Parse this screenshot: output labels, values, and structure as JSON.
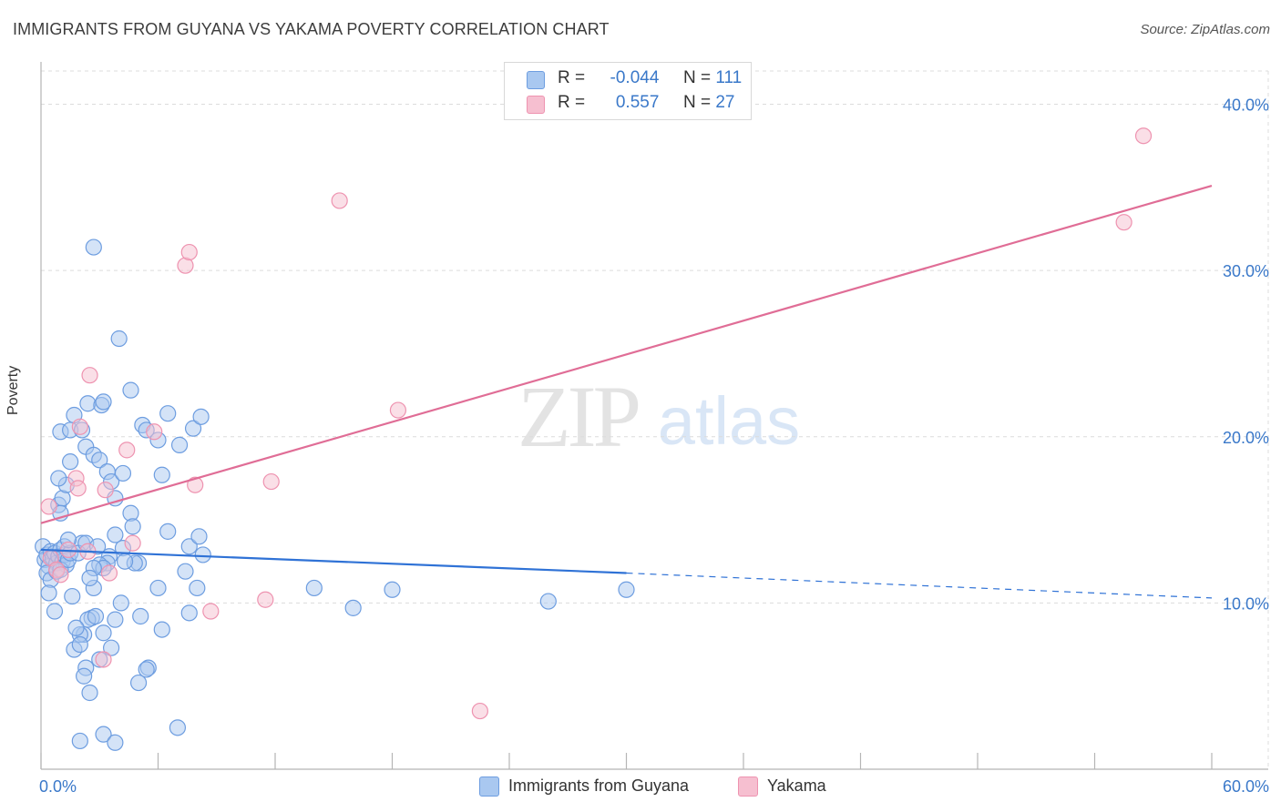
{
  "title": "IMMIGRANTS FROM GUYANA VS YAKAMA POVERTY CORRELATION CHART",
  "source": "Source: ZipAtlas.com",
  "watermark": {
    "zip": "ZIP",
    "atlas": "atlas"
  },
  "legend": {
    "r_label": "R =",
    "n_label": "N =",
    "series": [
      {
        "name": "Immigrants from Guyana",
        "r": "-0.044",
        "n": "111"
      },
      {
        "name": "Yakama",
        "r": "0.557",
        "n": "27"
      }
    ]
  },
  "colors": {
    "blue_fill": "#a9c8f0",
    "blue_stroke": "#6d9de0",
    "blue_line": "#2f72d6",
    "pink_fill": "#f6bfd0",
    "pink_stroke": "#ee93b0",
    "pink_line": "#e06d96",
    "axis_text": "#3a78c9",
    "grid": "#dcdcdc"
  },
  "chart_data": {
    "type": "scatter",
    "title": "IMMIGRANTS FROM GUYANA VS YAKAMA POVERTY CORRELATION CHART",
    "xlabel": "",
    "ylabel": "Poverty",
    "xlim": [
      0,
      60
    ],
    "ylim": [
      0,
      42
    ],
    "x_tick_labels": [
      "0.0%",
      "60.0%"
    ],
    "y_ticks": [
      10,
      20,
      30,
      40
    ],
    "y_tick_labels": [
      "10.0%",
      "20.0%",
      "30.0%",
      "40.0%"
    ],
    "grid": true,
    "legend_position": "top-center",
    "series": [
      {
        "name": "Immigrants from Guyana",
        "r": -0.044,
        "n": 111,
        "trend": {
          "x0": 0,
          "y0": 13.2,
          "x1": 30,
          "y1": 11.8,
          "dash_x1": 60,
          "dash_y1": 10.3
        },
        "points": [
          [
            0.1,
            13.4
          ],
          [
            0.2,
            12.6
          ],
          [
            0.3,
            12.9
          ],
          [
            0.4,
            12.2
          ],
          [
            0.5,
            13.1
          ],
          [
            0.6,
            12.7
          ],
          [
            0.7,
            13.0
          ],
          [
            0.8,
            12.4
          ],
          [
            0.9,
            12.8
          ],
          [
            1.0,
            13.2
          ],
          [
            1.1,
            12.5
          ],
          [
            1.2,
            12.9
          ],
          [
            1.3,
            12.3
          ],
          [
            0.3,
            11.8
          ],
          [
            0.5,
            11.4
          ],
          [
            0.8,
            11.9
          ],
          [
            1.0,
            12.0
          ],
          [
            1.2,
            13.4
          ],
          [
            1.4,
            12.6
          ],
          [
            1.5,
            13.0
          ],
          [
            0.4,
            10.6
          ],
          [
            0.7,
            9.5
          ],
          [
            0.9,
            15.9
          ],
          [
            1.1,
            16.3
          ],
          [
            1.0,
            15.4
          ],
          [
            1.3,
            17.1
          ],
          [
            1.5,
            18.5
          ],
          [
            0.9,
            17.5
          ],
          [
            1.0,
            20.3
          ],
          [
            1.5,
            20.4
          ],
          [
            1.7,
            21.3
          ],
          [
            2.1,
            20.4
          ],
          [
            2.3,
            19.4
          ],
          [
            2.4,
            22.0
          ],
          [
            2.7,
            18.9
          ],
          [
            3.0,
            18.6
          ],
          [
            3.1,
            21.9
          ],
          [
            3.2,
            22.1
          ],
          [
            3.4,
            17.9
          ],
          [
            3.6,
            17.3
          ],
          [
            3.8,
            16.3
          ],
          [
            4.2,
            17.8
          ],
          [
            4.6,
            15.4
          ],
          [
            4.7,
            14.6
          ],
          [
            2.7,
            31.4
          ],
          [
            4.0,
            25.9
          ],
          [
            4.6,
            22.8
          ],
          [
            5.2,
            20.7
          ],
          [
            5.4,
            20.4
          ],
          [
            6.0,
            19.8
          ],
          [
            6.2,
            17.7
          ],
          [
            6.5,
            21.4
          ],
          [
            6.5,
            14.3
          ],
          [
            7.1,
            19.5
          ],
          [
            7.8,
            20.5
          ],
          [
            8.2,
            21.2
          ],
          [
            7.6,
            13.4
          ],
          [
            8.1,
            14.0
          ],
          [
            8.3,
            12.9
          ],
          [
            7.4,
            11.9
          ],
          [
            8.0,
            10.9
          ],
          [
            7.6,
            9.4
          ],
          [
            6.0,
            10.9
          ],
          [
            6.2,
            8.4
          ],
          [
            5.0,
            12.4
          ],
          [
            4.8,
            12.4
          ],
          [
            5.1,
            9.2
          ],
          [
            5.5,
            6.1
          ],
          [
            5.4,
            6.0
          ],
          [
            5.0,
            5.2
          ],
          [
            4.2,
            13.3
          ],
          [
            4.1,
            10.0
          ],
          [
            3.5,
            12.8
          ],
          [
            3.4,
            12.4
          ],
          [
            3.8,
            14.1
          ],
          [
            3.0,
            12.3
          ],
          [
            3.2,
            12.1
          ],
          [
            2.7,
            10.9
          ],
          [
            2.6,
            9.1
          ],
          [
            2.4,
            9.0
          ],
          [
            2.2,
            8.1
          ],
          [
            2.0,
            8.1
          ],
          [
            1.8,
            8.5
          ],
          [
            1.6,
            10.4
          ],
          [
            1.7,
            7.2
          ],
          [
            2.0,
            7.5
          ],
          [
            2.3,
            6.1
          ],
          [
            2.2,
            5.6
          ],
          [
            2.5,
            4.6
          ],
          [
            2.7,
            12.1
          ],
          [
            2.1,
            13.6
          ],
          [
            1.4,
            13.8
          ],
          [
            1.9,
            13.0
          ],
          [
            2.3,
            13.6
          ],
          [
            3.2,
            8.2
          ],
          [
            3.6,
            7.3
          ],
          [
            3.8,
            9.0
          ],
          [
            3.2,
            2.1
          ],
          [
            3.8,
            1.6
          ],
          [
            2.0,
            1.7
          ],
          [
            7.0,
            2.5
          ],
          [
            2.8,
            9.2
          ],
          [
            2.5,
            11.5
          ],
          [
            2.9,
            13.4
          ],
          [
            14.0,
            10.9
          ],
          [
            16.0,
            9.7
          ],
          [
            18.0,
            10.8
          ],
          [
            26.0,
            10.1
          ],
          [
            30.0,
            10.8
          ],
          [
            3.0,
            6.6
          ],
          [
            4.3,
            12.5
          ]
        ]
      },
      {
        "name": "Yakama",
        "r": 0.557,
        "n": 27,
        "trend": {
          "x0": 0,
          "y0": 14.8,
          "x1": 60,
          "y1": 35.1
        },
        "points": [
          [
            0.5,
            12.7
          ],
          [
            0.8,
            12.0
          ],
          [
            1.0,
            11.7
          ],
          [
            1.4,
            13.2
          ],
          [
            1.8,
            17.5
          ],
          [
            1.9,
            16.9
          ],
          [
            2.0,
            20.6
          ],
          [
            2.4,
            13.1
          ],
          [
            2.5,
            23.7
          ],
          [
            3.3,
            16.8
          ],
          [
            3.5,
            11.8
          ],
          [
            4.4,
            19.2
          ],
          [
            4.7,
            13.6
          ],
          [
            5.8,
            20.3
          ],
          [
            7.4,
            30.3
          ],
          [
            7.6,
            31.1
          ],
          [
            7.9,
            17.1
          ],
          [
            8.7,
            9.5
          ],
          [
            11.5,
            10.2
          ],
          [
            11.8,
            17.3
          ],
          [
            15.3,
            34.2
          ],
          [
            18.3,
            21.6
          ],
          [
            22.5,
            3.5
          ],
          [
            55.5,
            32.9
          ],
          [
            56.5,
            38.1
          ],
          [
            0.4,
            15.8
          ],
          [
            3.2,
            6.6
          ]
        ]
      }
    ]
  }
}
